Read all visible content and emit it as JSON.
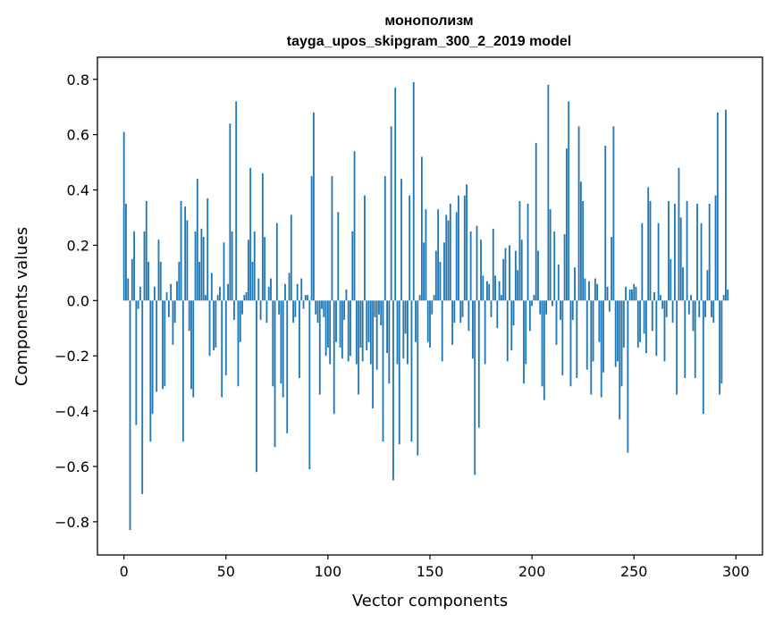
{
  "chart_data": {
    "type": "bar",
    "title": "монополизм",
    "subtitle": "tayga_upos_skipgram_300_2_2019 model",
    "xlabel": "Vector components",
    "ylabel": "Components values",
    "xlim": [
      -13,
      313
    ],
    "ylim": [
      -0.92,
      0.88
    ],
    "xticks": [
      0,
      50,
      100,
      150,
      200,
      250,
      300
    ],
    "yticks": [
      -0.8,
      -0.6,
      -0.4,
      -0.2,
      0.0,
      0.2,
      0.4,
      0.6,
      0.8
    ],
    "ytick_labels": [
      "−0.8",
      "−0.6",
      "−0.4",
      "−0.2",
      "0.0",
      "0.2",
      "0.4",
      "0.6",
      "0.8"
    ],
    "bar_color": "#1f77b4",
    "values": [
      0.61,
      0.35,
      0.08,
      -0.83,
      0.15,
      0.25,
      -0.45,
      -0.03,
      0.05,
      -0.7,
      0.25,
      0.36,
      0.14,
      -0.51,
      -0.41,
      0.05,
      -0.33,
      0.22,
      0.14,
      -0.32,
      -0.31,
      0.03,
      -0.06,
      0.06,
      -0.16,
      -0.08,
      0.07,
      0.14,
      0.36,
      -0.51,
      0.34,
      0.29,
      -0.11,
      -0.32,
      -0.35,
      0.25,
      0.44,
      0.14,
      0.26,
      0.23,
      0.02,
      0.37,
      -0.2,
      0.1,
      -0.18,
      -0.17,
      0.02,
      0.05,
      -0.35,
      0.21,
      -0.27,
      0.06,
      0.64,
      0.25,
      -0.07,
      0.72,
      -0.31,
      -0.15,
      -0.05,
      0.02,
      0.03,
      0.22,
      0.48,
      0.14,
      0.25,
      -0.62,
      0.08,
      -0.07,
      0.46,
      0.23,
      -0.08,
      0.05,
      0.08,
      -0.31,
      -0.53,
      0.28,
      -0.05,
      -0.3,
      -0.35,
      0.06,
      -0.48,
      0.1,
      0.31,
      -0.08,
      -0.06,
      0.06,
      -0.28,
      0.08,
      -0.03,
      0.02,
      0.02,
      -0.61,
      0.45,
      0.68,
      -0.05,
      -0.08,
      -0.34,
      -0.03,
      -0.06,
      -0.2,
      -0.17,
      -0.23,
      0.45,
      -0.41,
      -0.15,
      0.32,
      -0.17,
      -0.21,
      -0.07,
      0.04,
      -0.22,
      -0.2,
      0.25,
      0.54,
      -0.23,
      -0.34,
      -0.17,
      -0.22,
      0.38,
      -0.18,
      -0.15,
      -0.23,
      -0.39,
      -0.06,
      -0.25,
      -0.05,
      -0.09,
      -0.51,
      0.45,
      -0.19,
      -0.3,
      0.63,
      -0.65,
      0.77,
      -0.23,
      -0.52,
      0.44,
      -0.21,
      -0.12,
      -0.23,
      0.38,
      -0.51,
      0.79,
      -0.15,
      -0.56,
      0.02,
      0.52,
      0.21,
      0.33,
      -0.15,
      -0.17,
      -0.05,
      0.02,
      0.18,
      0.33,
      0.14,
      -0.22,
      0.21,
      0.31,
      0.29,
      0.35,
      -0.16,
      -0.08,
      0.32,
      0.38,
      -0.08,
      -0.06,
      0.38,
      0.42,
      -0.11,
      0.25,
      -0.21,
      -0.63,
      0.27,
      -0.46,
      0.22,
      0.09,
      -0.23,
      0.07,
      0.06,
      -0.06,
      0.26,
      0.09,
      -0.1,
      0.07,
      0.02,
      0.15,
      0.19,
      -0.22,
      0.2,
      -0.18,
      -0.09,
      0.18,
      0.11,
      0.36,
      0.22,
      -0.3,
      -0.23,
      0.35,
      -0.11,
      -0.02,
      0.02,
      0.57,
      0.18,
      -0.05,
      -0.31,
      -0.36,
      -0.05,
      0.78,
      0.33,
      -0.02,
      0.25,
      -0.16,
      0.13,
      -0.07,
      -0.27,
      0.24,
      0.55,
      0.72,
      -0.31,
      -0.07,
      0.12,
      -0.28,
      0.63,
      0.43,
      0.36,
      0.08,
      -0.25,
      0.07,
      -0.34,
      -0.22,
      0.08,
      0.06,
      -0.15,
      -0.35,
      -0.26,
      0.56,
      0.05,
      -0.04,
      0.23,
      0.63,
      -0.24,
      -0.22,
      -0.43,
      -0.31,
      -0.17,
      0.05,
      -0.55,
      0.04,
      0.04,
      0.06,
      0.05,
      -0.17,
      -0.15,
      0.28,
      -0.12,
      -0.19,
      0.41,
      0.36,
      -0.11,
      0.03,
      -0.2,
      0.28,
      0.02,
      -0.03,
      -0.22,
      -0.06,
      0.36,
      0.15,
      -0.08,
      0.35,
      -0.34,
      0.48,
      0.3,
      0.12,
      -0.28,
      0.36,
      -0.05,
      0.02,
      -0.11,
      -0.28,
      0.35,
      -0.06,
      0.28,
      -0.41,
      -0.06,
      0.11,
      0.35,
      -0.06,
      -0.08,
      0.38,
      0.68,
      -0.34,
      -0.3,
      0.02,
      0.69,
      0.04
    ]
  }
}
